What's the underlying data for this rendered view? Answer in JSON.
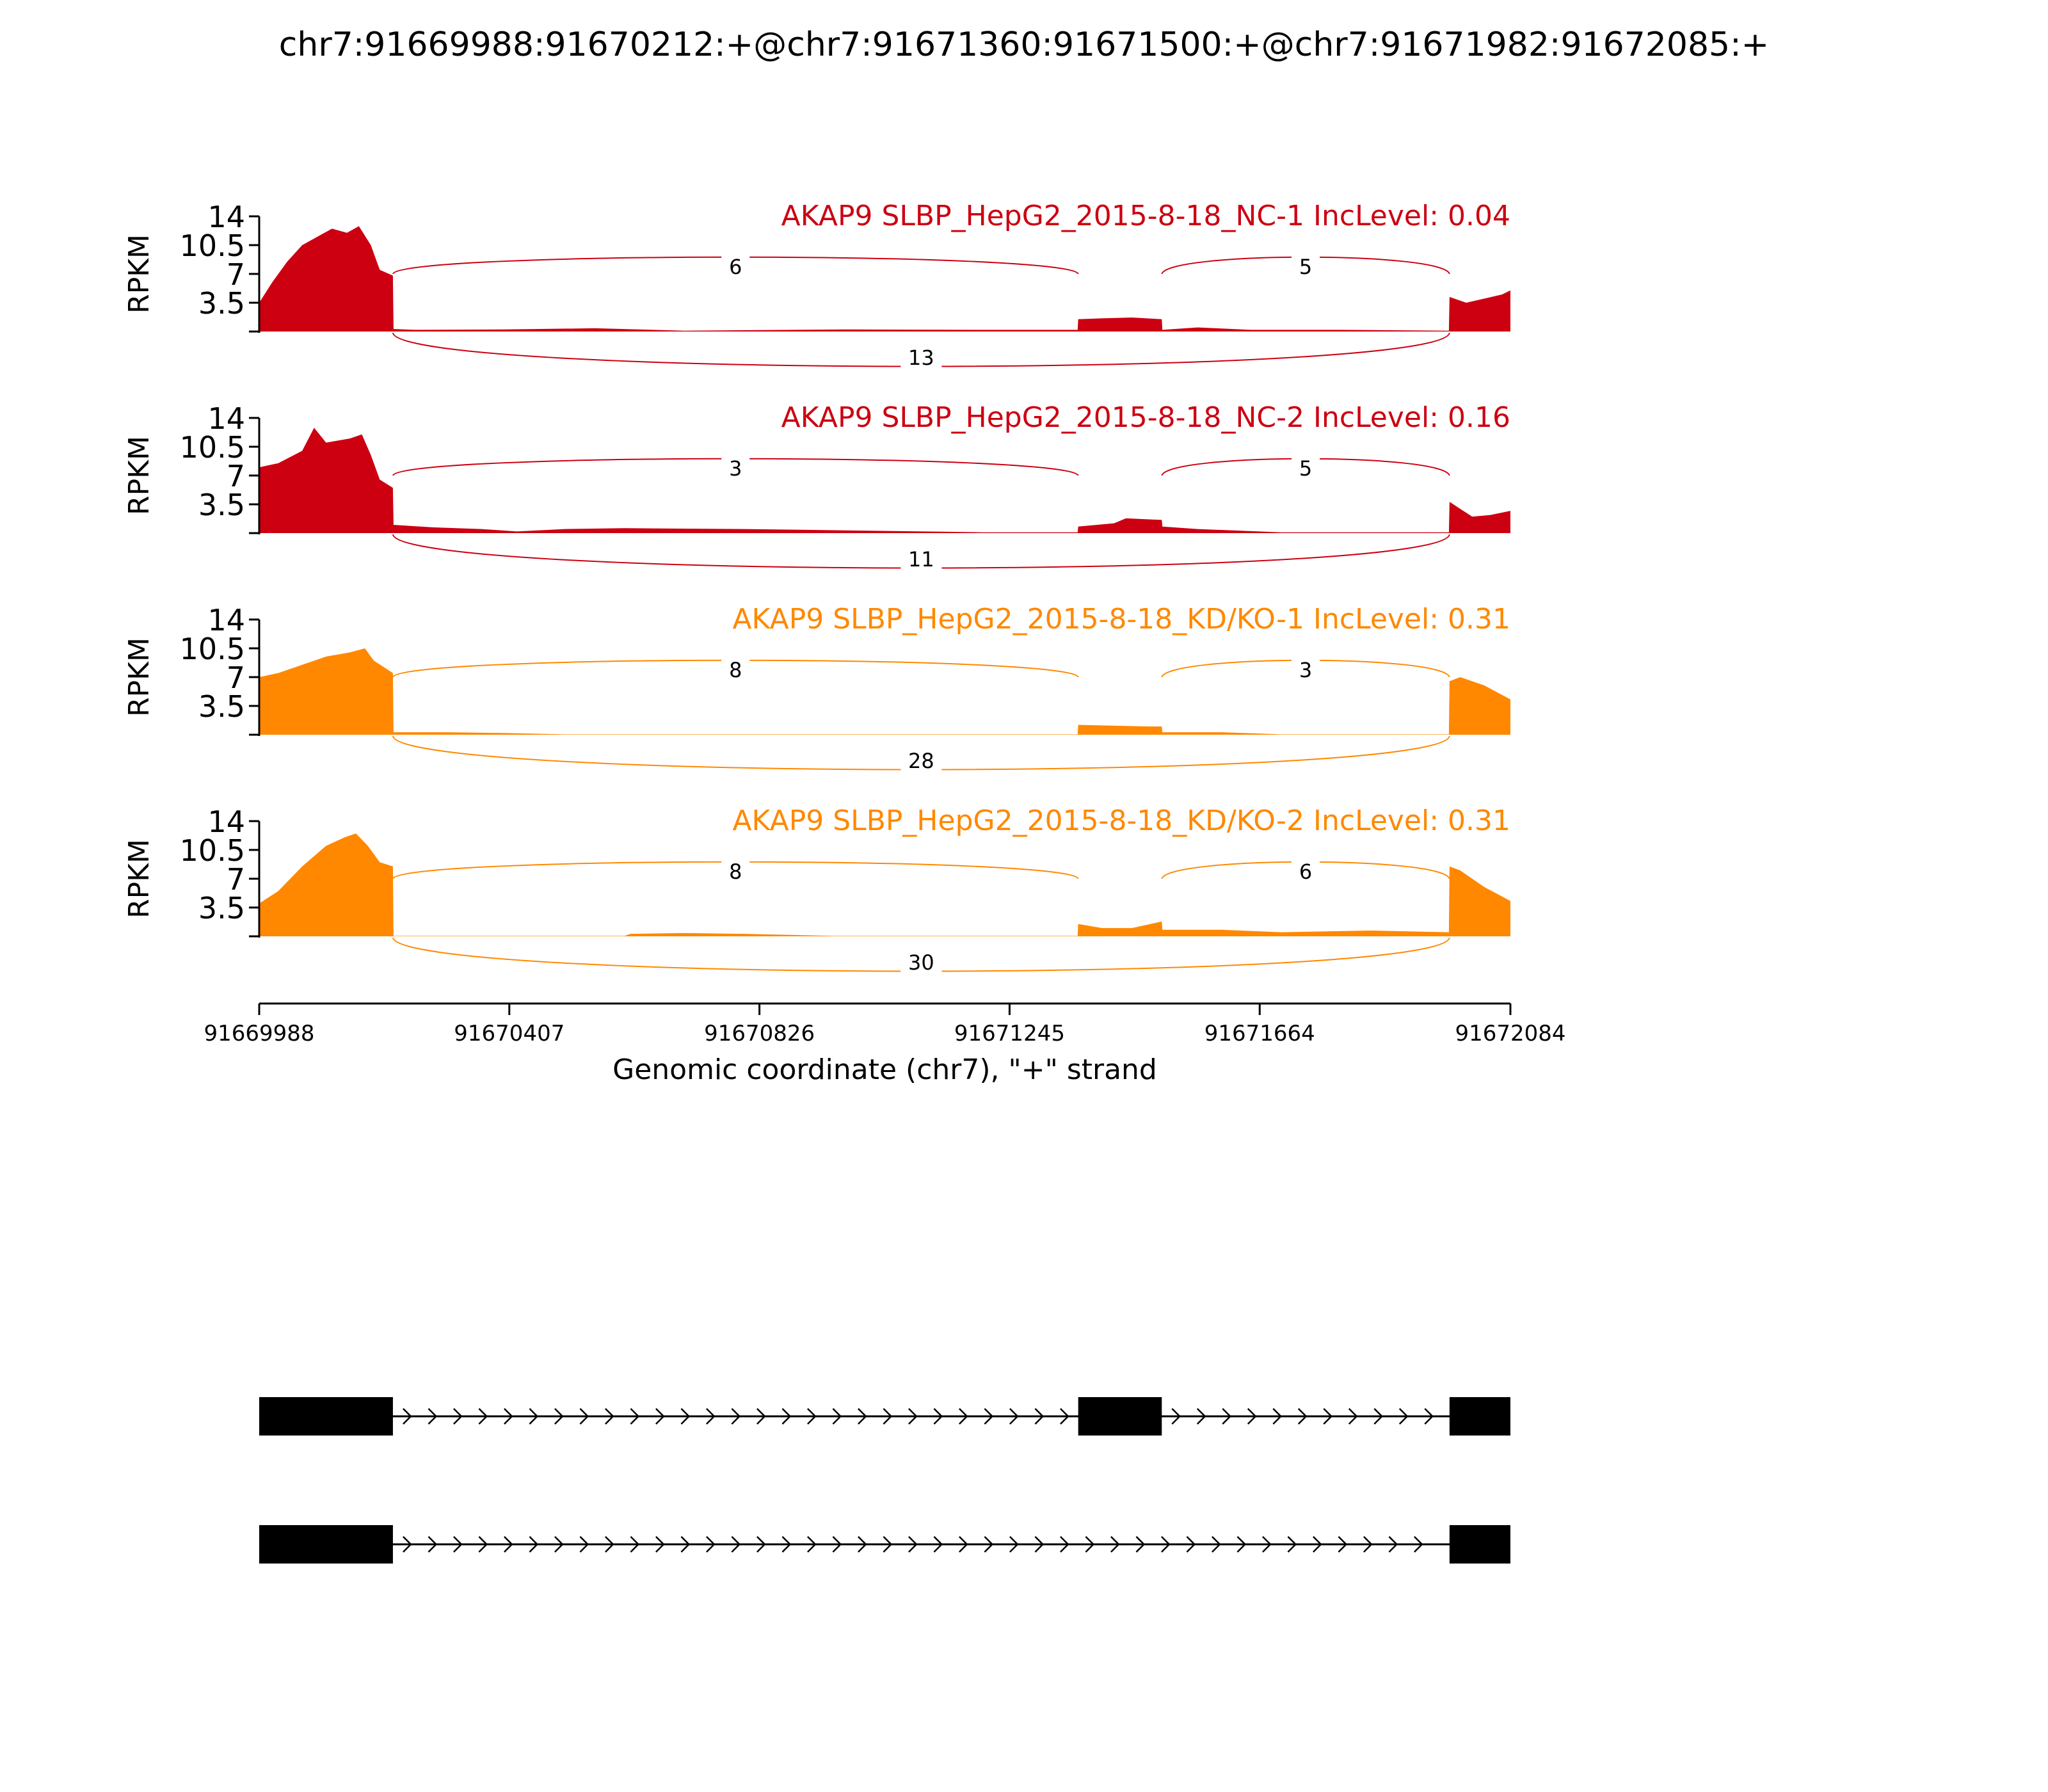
{
  "title": "chr7:91669988:91670212:+@chr7:91671360:91671500:+@chr7:91671982:91672085:+",
  "chart_data": {
    "type": "area",
    "xlabel": "Genomic coordinate (chr7), \"+\" strand",
    "ylabel": "RPKM",
    "xlim": [
      91669988,
      91672084
    ],
    "xticks": [
      "91669988",
      "91670407",
      "91670826",
      "91671245",
      "91671664",
      "91672084"
    ],
    "ylim": [
      0,
      14
    ],
    "yticks": [
      "14",
      "10.5",
      "7",
      "3.5"
    ],
    "exons": [
      [
        91669988,
        91670212
      ],
      [
        91671360,
        91671500
      ],
      [
        91671982,
        91672085
      ]
    ],
    "tracks": [
      {
        "name": "AKAP9 SLBP_HepG2_2015-8-18_NC-1 IncLevel: 0.04",
        "color": "#cc0011",
        "coverage": [
          {
            "x": 91669988,
            "y": 3.5
          },
          {
            "x": 91670010,
            "y": 6.0
          },
          {
            "x": 91670035,
            "y": 8.5
          },
          {
            "x": 91670060,
            "y": 10.5
          },
          {
            "x": 91670085,
            "y": 11.5
          },
          {
            "x": 91670110,
            "y": 12.5
          },
          {
            "x": 91670135,
            "y": 12.0
          },
          {
            "x": 91670155,
            "y": 12.8
          },
          {
            "x": 91670175,
            "y": 10.5
          },
          {
            "x": 91670190,
            "y": 7.5
          },
          {
            "x": 91670212,
            "y": 6.8
          },
          {
            "x": 91670213,
            "y": 0.3
          },
          {
            "x": 91670250,
            "y": 0.2
          },
          {
            "x": 91670400,
            "y": 0.25
          },
          {
            "x": 91670550,
            "y": 0.4
          },
          {
            "x": 91670700,
            "y": 0.1
          },
          {
            "x": 91670970,
            "y": 0.25
          },
          {
            "x": 91671200,
            "y": 0.2
          },
          {
            "x": 91671359,
            "y": 0.2
          },
          {
            "x": 91671360,
            "y": 1.5
          },
          {
            "x": 91671400,
            "y": 1.6
          },
          {
            "x": 91671450,
            "y": 1.7
          },
          {
            "x": 91671500,
            "y": 1.5
          },
          {
            "x": 91671501,
            "y": 0.2
          },
          {
            "x": 91671560,
            "y": 0.5
          },
          {
            "x": 91671650,
            "y": 0.2
          },
          {
            "x": 91671800,
            "y": 0.2
          },
          {
            "x": 91671981,
            "y": 0.1
          },
          {
            "x": 91671982,
            "y": 4.2
          },
          {
            "x": 91672010,
            "y": 3.5
          },
          {
            "x": 91672040,
            "y": 4.0
          },
          {
            "x": 91672070,
            "y": 4.5
          },
          {
            "x": 91672084,
            "y": 5.0
          }
        ],
        "junctions": [
          {
            "start": 91670212,
            "end": 91671360,
            "count": 6,
            "side": "above"
          },
          {
            "start": 91671500,
            "end": 91671982,
            "count": 5,
            "side": "above"
          },
          {
            "start": 91670212,
            "end": 91671982,
            "count": 13,
            "side": "below"
          }
        ]
      },
      {
        "name": "AKAP9 SLBP_HepG2_2015-8-18_NC-2 IncLevel: 0.16",
        "color": "#cc0011",
        "coverage": [
          {
            "x": 91669988,
            "y": 8.0
          },
          {
            "x": 91670020,
            "y": 8.5
          },
          {
            "x": 91670060,
            "y": 10.0
          },
          {
            "x": 91670080,
            "y": 12.8
          },
          {
            "x": 91670100,
            "y": 11.0
          },
          {
            "x": 91670140,
            "y": 11.5
          },
          {
            "x": 91670160,
            "y": 12.0
          },
          {
            "x": 91670175,
            "y": 9.5
          },
          {
            "x": 91670190,
            "y": 6.5
          },
          {
            "x": 91670212,
            "y": 5.5
          },
          {
            "x": 91670213,
            "y": 1.0
          },
          {
            "x": 91670280,
            "y": 0.7
          },
          {
            "x": 91670360,
            "y": 0.5
          },
          {
            "x": 91670420,
            "y": 0.2
          },
          {
            "x": 91670500,
            "y": 0.5
          },
          {
            "x": 91670600,
            "y": 0.6
          },
          {
            "x": 91670800,
            "y": 0.5
          },
          {
            "x": 91671000,
            "y": 0.3
          },
          {
            "x": 91671200,
            "y": 0.1
          },
          {
            "x": 91671359,
            "y": 0.1
          },
          {
            "x": 91671360,
            "y": 0.8
          },
          {
            "x": 91671420,
            "y": 1.2
          },
          {
            "x": 91671440,
            "y": 1.8
          },
          {
            "x": 91671500,
            "y": 1.6
          },
          {
            "x": 91671501,
            "y": 0.8
          },
          {
            "x": 91671560,
            "y": 0.5
          },
          {
            "x": 91671700,
            "y": 0.1
          },
          {
            "x": 91671981,
            "y": 0.1
          },
          {
            "x": 91671982,
            "y": 3.8
          },
          {
            "x": 91672020,
            "y": 2.0
          },
          {
            "x": 91672050,
            "y": 2.2
          },
          {
            "x": 91672084,
            "y": 2.7
          }
        ],
        "junctions": [
          {
            "start": 91670212,
            "end": 91671360,
            "count": 3,
            "side": "above"
          },
          {
            "start": 91671500,
            "end": 91671982,
            "count": 5,
            "side": "above"
          },
          {
            "start": 91670212,
            "end": 91671982,
            "count": 11,
            "side": "below"
          }
        ]
      },
      {
        "name": "AKAP9 SLBP_HepG2_2015-8-18_KD/KO-1 IncLevel: 0.31",
        "color": "#ff8800",
        "coverage": [
          {
            "x": 91669988,
            "y": 7.0
          },
          {
            "x": 91670020,
            "y": 7.5
          },
          {
            "x": 91670060,
            "y": 8.5
          },
          {
            "x": 91670100,
            "y": 9.5
          },
          {
            "x": 91670140,
            "y": 10.0
          },
          {
            "x": 91670165,
            "y": 10.5
          },
          {
            "x": 91670180,
            "y": 9.0
          },
          {
            "x": 91670212,
            "y": 7.5
          },
          {
            "x": 91670213,
            "y": 0.3
          },
          {
            "x": 91670300,
            "y": 0.3
          },
          {
            "x": 91670400,
            "y": 0.2
          },
          {
            "x": 91670500,
            "y": 0.05
          },
          {
            "x": 91670800,
            "y": 0.05
          },
          {
            "x": 91671200,
            "y": 0.05
          },
          {
            "x": 91671359,
            "y": 0.05
          },
          {
            "x": 91671360,
            "y": 1.2
          },
          {
            "x": 91671420,
            "y": 1.1
          },
          {
            "x": 91671480,
            "y": 1.0
          },
          {
            "x": 91671500,
            "y": 1.0
          },
          {
            "x": 91671501,
            "y": 0.3
          },
          {
            "x": 91671600,
            "y": 0.3
          },
          {
            "x": 91671700,
            "y": 0.05
          },
          {
            "x": 91671981,
            "y": 0.05
          },
          {
            "x": 91671982,
            "y": 6.5
          },
          {
            "x": 91672000,
            "y": 7.0
          },
          {
            "x": 91672040,
            "y": 6.0
          },
          {
            "x": 91672084,
            "y": 4.3
          }
        ],
        "junctions": [
          {
            "start": 91670212,
            "end": 91671360,
            "count": 8,
            "side": "above"
          },
          {
            "start": 91671500,
            "end": 91671982,
            "count": 3,
            "side": "above"
          },
          {
            "start": 91670212,
            "end": 91671982,
            "count": 28,
            "side": "below"
          }
        ]
      },
      {
        "name": "AKAP9 SLBP_HepG2_2015-8-18_KD/KO-2 IncLevel: 0.31",
        "color": "#ff8800",
        "coverage": [
          {
            "x": 91669988,
            "y": 4.0
          },
          {
            "x": 91670020,
            "y": 5.5
          },
          {
            "x": 91670060,
            "y": 8.5
          },
          {
            "x": 91670100,
            "y": 11.0
          },
          {
            "x": 91670130,
            "y": 12.0
          },
          {
            "x": 91670150,
            "y": 12.5
          },
          {
            "x": 91670170,
            "y": 11.0
          },
          {
            "x": 91670190,
            "y": 9.0
          },
          {
            "x": 91670212,
            "y": 8.5
          },
          {
            "x": 91670213,
            "y": 0.05
          },
          {
            "x": 91670600,
            "y": 0.05
          },
          {
            "x": 91670610,
            "y": 0.3
          },
          {
            "x": 91670700,
            "y": 0.4
          },
          {
            "x": 91670800,
            "y": 0.3
          },
          {
            "x": 91670950,
            "y": 0.05
          },
          {
            "x": 91671359,
            "y": 0.05
          },
          {
            "x": 91671360,
            "y": 1.5
          },
          {
            "x": 91671400,
            "y": 1.0
          },
          {
            "x": 91671450,
            "y": 1.0
          },
          {
            "x": 91671500,
            "y": 1.8
          },
          {
            "x": 91671501,
            "y": 0.8
          },
          {
            "x": 91671600,
            "y": 0.8
          },
          {
            "x": 91671700,
            "y": 0.5
          },
          {
            "x": 91671850,
            "y": 0.7
          },
          {
            "x": 91671981,
            "y": 0.5
          },
          {
            "x": 91671982,
            "y": 8.5
          },
          {
            "x": 91672000,
            "y": 8.0
          },
          {
            "x": 91672040,
            "y": 6.0
          },
          {
            "x": 91672084,
            "y": 4.3
          }
        ],
        "junctions": [
          {
            "start": 91670212,
            "end": 91671360,
            "count": 8,
            "side": "above"
          },
          {
            "start": 91671500,
            "end": 91671982,
            "count": 6,
            "side": "above"
          },
          {
            "start": 91670212,
            "end": 91671982,
            "count": 30,
            "side": "below"
          }
        ]
      }
    ],
    "isoforms": [
      {
        "exons": [
          [
            91669988,
            91670212
          ],
          [
            91671360,
            91671500
          ],
          [
            91671982,
            91672085
          ]
        ]
      },
      {
        "exons": [
          [
            91669988,
            91670212
          ],
          [
            91671982,
            91672085
          ]
        ]
      }
    ]
  }
}
